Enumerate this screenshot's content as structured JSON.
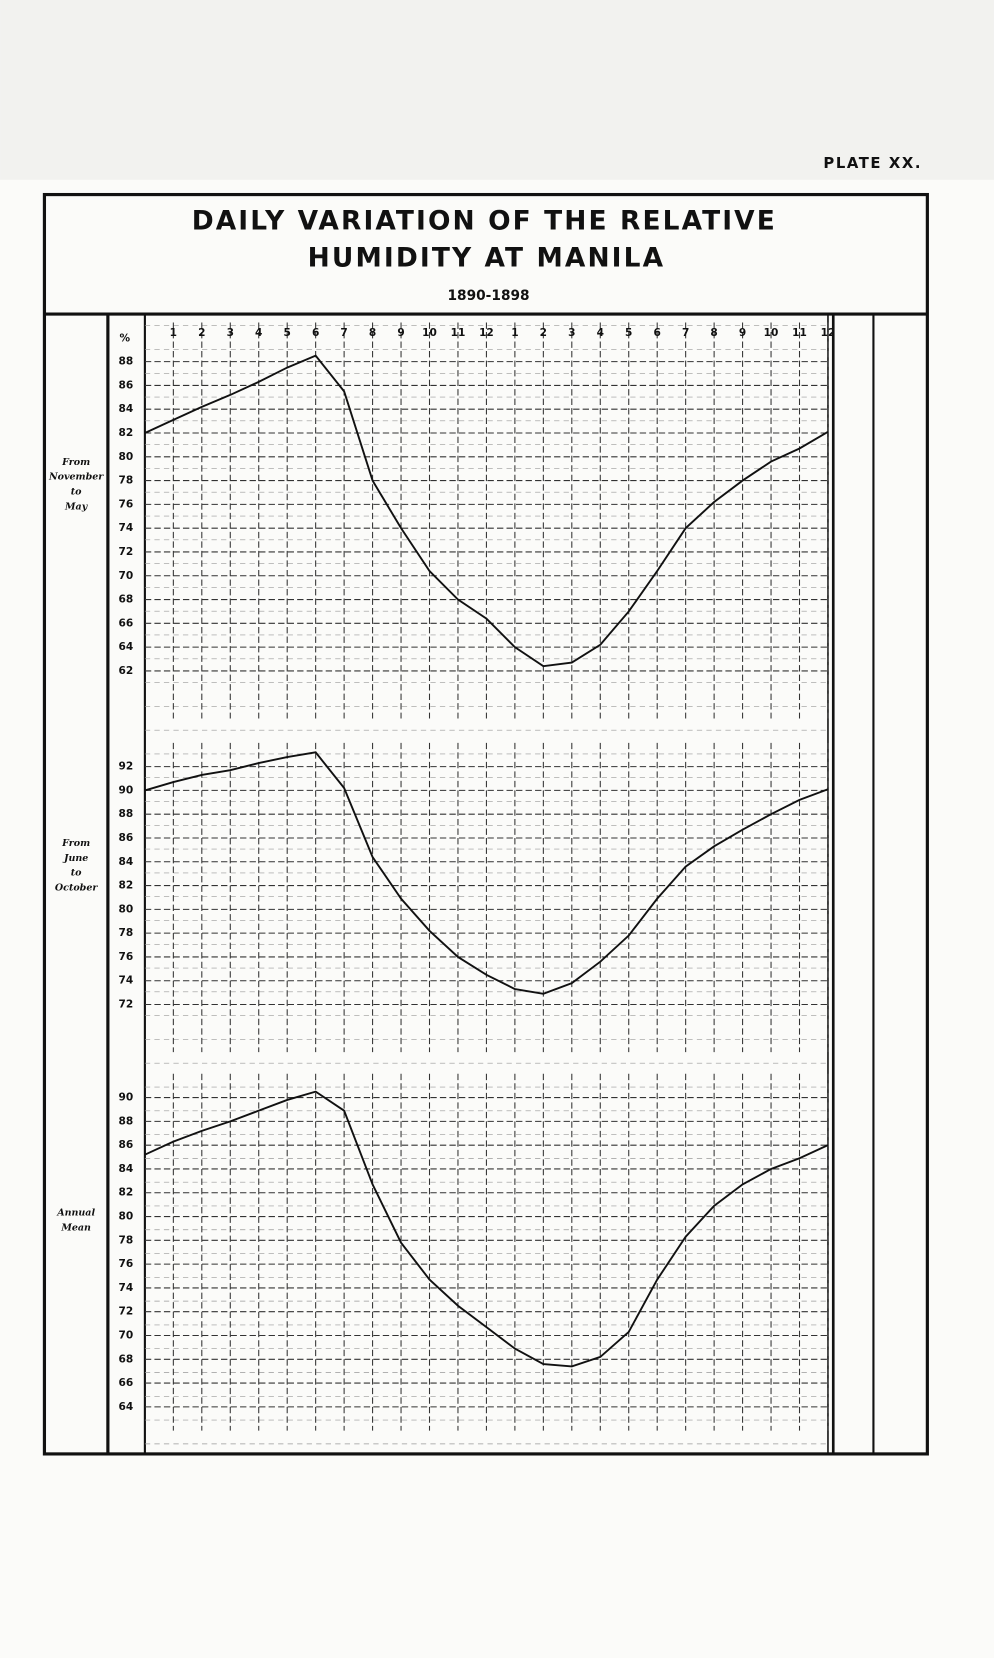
{
  "plate": "PLATE XX.",
  "title_lines": [
    "DAILY VARIATION OF THE RELATIVE",
    "HUMIDITY AT MANILA"
  ],
  "subtitle": "1890-1898",
  "chart_data": [
    {
      "type": "line",
      "side_label": [
        "From",
        "November",
        "to",
        "May"
      ],
      "y_unit": "%",
      "xlim": [
        0,
        24
      ],
      "xticks": [
        1,
        2,
        3,
        4,
        5,
        6,
        7,
        8,
        9,
        10,
        11,
        12,
        {
          "value": 13,
          "label": "1"
        },
        {
          "value": 14,
          "label": "2"
        },
        {
          "value": 15,
          "label": "3"
        },
        {
          "value": 16,
          "label": "4"
        },
        {
          "value": 17,
          "label": "5"
        },
        {
          "value": 18,
          "label": "6"
        },
        {
          "value": 19,
          "label": "7"
        },
        {
          "value": 20,
          "label": "8"
        },
        {
          "value": 21,
          "label": "9"
        },
        {
          "value": 22,
          "label": "10"
        },
        {
          "value": 23,
          "label": "11"
        },
        {
          "value": 24,
          "label": "12"
        }
      ],
      "ylim": [
        58,
        92
      ],
      "yticks": [
        88,
        86,
        84,
        82,
        80,
        78,
        76,
        74,
        72,
        70,
        68,
        66,
        64,
        62
      ],
      "x": [
        0,
        1,
        2,
        3,
        4,
        5,
        6,
        7,
        8,
        9,
        10,
        11,
        12,
        13,
        14,
        15,
        16,
        17,
        18,
        19,
        20,
        21,
        22,
        23,
        24
      ],
      "series": [
        {
          "color": "#111111",
          "values": [
            82,
            83.1,
            84.2,
            85.2,
            86.3,
            87.5,
            88.5,
            85.5,
            78,
            74,
            70.4,
            68,
            66.4,
            64,
            62.4,
            62.7,
            64.2,
            67,
            70.4,
            74,
            76.2,
            78,
            79.6,
            80.7,
            82.1
          ]
        }
      ]
    },
    {
      "type": "line",
      "side_label": [
        "From",
        "June",
        "to",
        "October"
      ],
      "xlim": [
        0,
        24
      ],
      "ylim": [
        68,
        94
      ],
      "yticks": [
        92,
        90,
        88,
        86,
        84,
        82,
        80,
        78,
        76,
        74,
        72
      ],
      "x": [
        0,
        1,
        2,
        3,
        4,
        5,
        6,
        7,
        8,
        9,
        10,
        11,
        12,
        13,
        14,
        15,
        16,
        17,
        18,
        19,
        20,
        21,
        22,
        23,
        24
      ],
      "series": [
        {
          "color": "#111111",
          "values": [
            90,
            90.7,
            91.3,
            91.7,
            92.3,
            92.8,
            93.2,
            90.2,
            84.4,
            80.9,
            78.2,
            76,
            74.5,
            73.3,
            72.9,
            73.8,
            75.6,
            77.8,
            80.9,
            83.6,
            85.3,
            86.7,
            88,
            89.2,
            90.1
          ]
        }
      ]
    },
    {
      "type": "line",
      "side_label": [
        "Annual",
        "Mean"
      ],
      "xlim": [
        0,
        24
      ],
      "ylim": [
        62,
        92
      ],
      "yticks": [
        90,
        88,
        86,
        84,
        82,
        80,
        78,
        76,
        74,
        72,
        70,
        68,
        66,
        64
      ],
      "x": [
        0,
        1,
        2,
        3,
        4,
        5,
        6,
        7,
        8,
        9,
        10,
        11,
        12,
        13,
        14,
        15,
        16,
        17,
        18,
        19,
        20,
        21,
        22,
        23,
        24
      ],
      "series": [
        {
          "color": "#111111",
          "values": [
            85.2,
            86.3,
            87.2,
            88,
            88.9,
            89.8,
            90.5,
            88.9,
            82.7,
            77.8,
            74.7,
            72.5,
            70.7,
            68.9,
            67.6,
            67.4,
            68.2,
            70.3,
            74.7,
            78.3,
            80.9,
            82.7,
            84,
            84.9,
            86
          ]
        }
      ]
    }
  ]
}
